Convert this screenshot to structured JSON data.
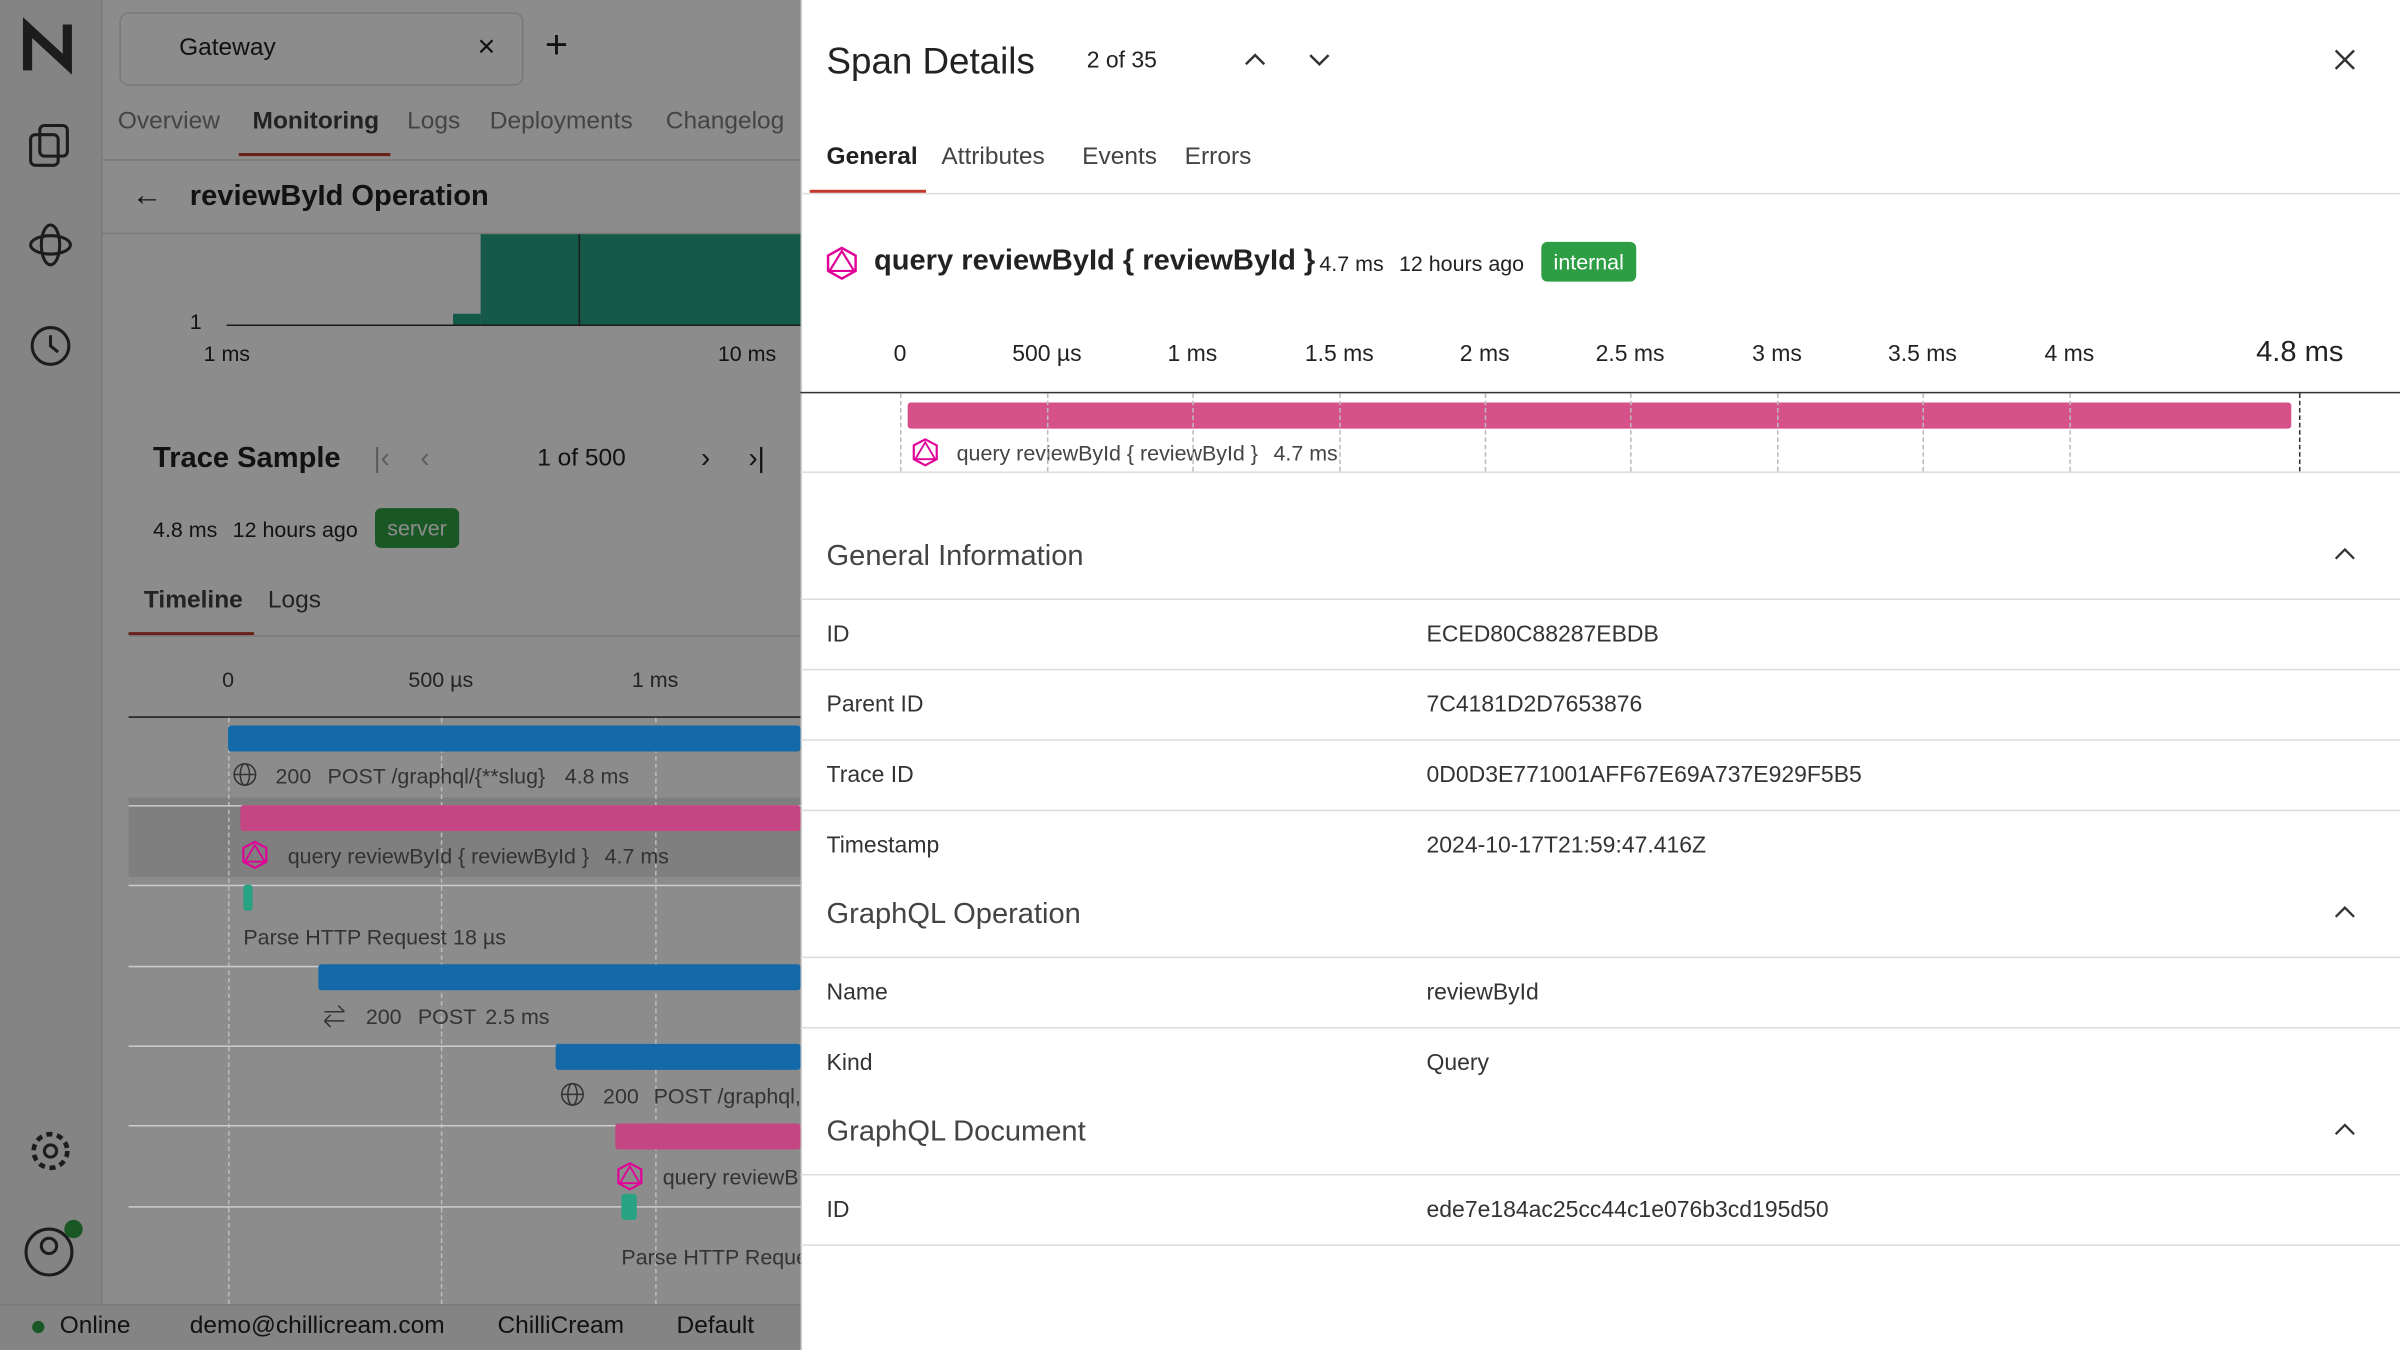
{
  "sidebar": {
    "status": "Online",
    "user": "demo@chillicream.com",
    "org": "ChilliCream",
    "env": "Default"
  },
  "app": {
    "tab": "Gateway",
    "nav": [
      "Overview",
      "Monitoring",
      "Logs",
      "Deployments",
      "Changelog"
    ],
    "operation": "reviewById Operation",
    "histogram": {
      "y_label": "1",
      "x_labels": [
        "1 ms",
        "10 ms"
      ]
    },
    "trace_sample": {
      "title": "Trace Sample",
      "page": "1 of 500",
      "duration": "4.8 ms",
      "age": "12 hours ago",
      "badge": "server",
      "tabs": [
        "Timeline",
        "Logs"
      ],
      "axis": [
        "0",
        "500 µs",
        "1 ms"
      ],
      "spans": [
        [
          "200",
          "POST /graphql/{**slug}",
          "4.8 ms"
        ],
        [
          "query reviewById { reviewById }",
          "4.7 ms"
        ],
        [
          "Parse HTTP Request",
          "18 µs"
        ],
        [
          "200",
          "POST",
          "2.5 ms"
        ],
        [
          "200",
          "POST /graphql,"
        ],
        [
          "query reviewB"
        ],
        [
          "Parse HTTP Reque"
        ]
      ]
    }
  },
  "panel": {
    "title": "Span Details",
    "counter": "2 of 35",
    "tabs": [
      "General",
      "Attributes",
      "Events",
      "Errors"
    ],
    "span": {
      "name": "query reviewById { reviewById }",
      "duration": "4.7 ms",
      "age": "12 hours ago",
      "badge": "internal"
    },
    "timeline": {
      "ticks": [
        "0",
        "500 µs",
        "1 ms",
        "1.5 ms",
        "2 ms",
        "2.5 ms",
        "3 ms",
        "3.5 ms",
        "4 ms"
      ],
      "end": "4.8 ms",
      "bar_label": "query reviewById { reviewById }",
      "bar_duration": "4.7 ms"
    },
    "sections": [
      {
        "title": "General Information",
        "rows": [
          [
            "ID",
            "ECED80C88287EBDB"
          ],
          [
            "Parent ID",
            "7C4181D2D7653876"
          ],
          [
            "Trace ID",
            "0D0D3E771001AFF67E69A737E929F5B5"
          ],
          [
            "Timestamp",
            "2024-10-17T21:59:47.416Z"
          ]
        ]
      },
      {
        "title": "GraphQL Operation",
        "rows": [
          [
            "Name",
            "reviewById"
          ],
          [
            "Kind",
            "Query"
          ]
        ]
      },
      {
        "title": "GraphQL Document",
        "rows": [
          [
            "ID",
            "ede7e184ac25cc44c1e076b3cd195d50"
          ]
        ]
      }
    ]
  }
}
